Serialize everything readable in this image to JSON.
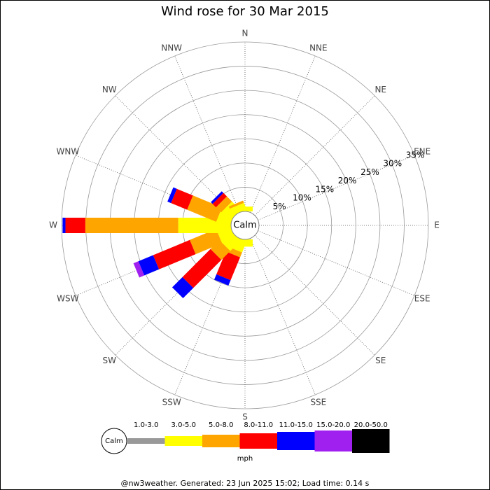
{
  "chart_data": {
    "type": "rose",
    "title": "Wind rose for 30 Mar 2015",
    "categories": [
      "N",
      "NNE",
      "NE",
      "ENE",
      "E",
      "ESE",
      "SE",
      "SSE",
      "S",
      "SSW",
      "SW",
      "WSW",
      "W",
      "WNW",
      "NW",
      "NNW"
    ],
    "center_label": "Calm",
    "ylim": [
      0,
      35
    ],
    "yticks": [
      {
        "value": 5,
        "label": "5%"
      },
      {
        "value": 10,
        "label": "10%"
      },
      {
        "value": 15,
        "label": "15%"
      },
      {
        "value": 20,
        "label": "20%"
      },
      {
        "value": 25,
        "label": "25%"
      },
      {
        "value": 30,
        "label": "30%"
      },
      {
        "value": 35,
        "label": "35%"
      }
    ],
    "legend_unit": "mph",
    "series": [
      {
        "name": "1.0-3.0",
        "color": "#999999",
        "values": [
          0,
          0,
          0,
          0,
          0,
          0,
          0,
          0,
          0,
          0,
          0,
          0,
          0,
          0,
          0,
          0
        ]
      },
      {
        "name": "3.0-5.0",
        "color": "#ffff00",
        "values": [
          1,
          0,
          0,
          0,
          0,
          0,
          0,
          0,
          1.5,
          2.5,
          3,
          2.9,
          10.9,
          2.9,
          2.5,
          1.5
        ]
      },
      {
        "name": "5.0-8.0",
        "color": "#ffa500",
        "values": [
          0,
          0,
          0,
          0,
          0,
          0,
          0,
          0,
          0,
          1.1,
          2.6,
          5.9,
          19.2,
          6.5,
          1.5,
          0.5
        ]
      },
      {
        "name": "8.0-11.0",
        "color": "#ff0000",
        "values": [
          0,
          0,
          0,
          0,
          0,
          0,
          0,
          0,
          0,
          5.1,
          8.2,
          8.2,
          4.1,
          3.6,
          1,
          0
        ]
      },
      {
        "name": "11.0-15.0",
        "color": "#0000ff",
        "values": [
          0,
          0,
          0,
          0,
          0,
          0,
          0,
          0,
          0,
          1.2,
          3,
          3.3,
          0.6,
          0.8,
          0.5,
          0
        ]
      },
      {
        "name": "15.0-20.0",
        "color": "#a020f0",
        "values": [
          0,
          0,
          0,
          0,
          0,
          0,
          0,
          0,
          0,
          0,
          0,
          1.1,
          0,
          0,
          0,
          0
        ]
      },
      {
        "name": "20.0-50.0",
        "color": "#000000",
        "values": [
          0,
          0,
          0,
          0,
          0,
          0,
          0,
          0,
          0,
          0,
          0,
          0,
          0,
          0,
          0,
          0
        ]
      }
    ]
  },
  "footer": "@nw3weather. Generated: 23 Jun 2025 15:02; Load time: 0.14 s"
}
